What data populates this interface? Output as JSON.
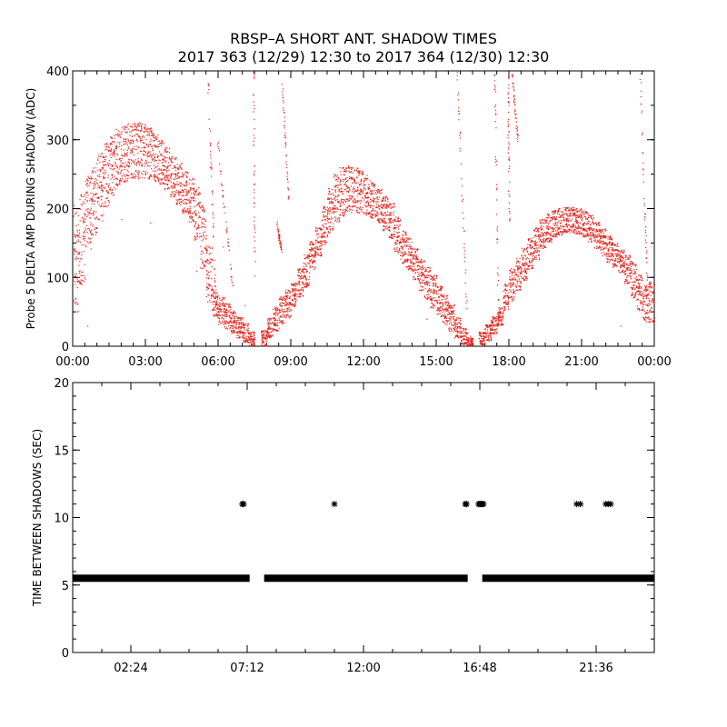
{
  "title": {
    "line1": "RBSP–A SHORT ANT. SHADOW TIMES",
    "line2": "2017 363 (12/29) 12:30 to 2017 364 (12/30) 12:30"
  },
  "colors": {
    "points_top": "#e8231c",
    "points_bottom": "#000000",
    "axes": "#000000"
  },
  "chart_data": [
    {
      "type": "scatter",
      "ylabel": "Probe 5 DELTA AMP DURING SHADOW (ADC)",
      "xlabel": "",
      "x_unit": "hours",
      "xlim": [
        0,
        24
      ],
      "ylim": [
        0,
        400
      ],
      "x_ticks": [
        {
          "v": 0,
          "label": "00:00"
        },
        {
          "v": 3,
          "label": "03:00"
        },
        {
          "v": 6,
          "label": "06:00"
        },
        {
          "v": 9,
          "label": "09:00"
        },
        {
          "v": 12,
          "label": "12:00"
        },
        {
          "v": 15,
          "label": "15:00"
        },
        {
          "v": 18,
          "label": "18:00"
        },
        {
          "v": 21,
          "label": "21:00"
        },
        {
          "v": 24,
          "label": "00:00"
        }
      ],
      "y_ticks": [
        {
          "v": 0,
          "label": "0"
        },
        {
          "v": 100,
          "label": "100"
        },
        {
          "v": 200,
          "label": "200"
        },
        {
          "v": 300,
          "label": "300"
        },
        {
          "v": 400,
          "label": "400"
        }
      ],
      "series": [
        {
          "marker": "dot",
          "band_hours": 0.25,
          "bands": [
            [
              0.0,
              60,
              200
            ],
            [
              0.25,
              100,
              215
            ],
            [
              0.5,
              150,
              240
            ],
            [
              0.75,
              170,
              260
            ],
            [
              1.0,
              190,
              275
            ],
            [
              1.25,
              210,
              290
            ],
            [
              1.5,
              225,
              300
            ],
            [
              1.75,
              240,
              310
            ],
            [
              2.0,
              245,
              315
            ],
            [
              2.25,
              250,
              318
            ],
            [
              2.5,
              250,
              320
            ],
            [
              2.75,
              250,
              318
            ],
            [
              3.0,
              248,
              312
            ],
            [
              3.25,
              245,
              305
            ],
            [
              3.5,
              240,
              295
            ],
            [
              3.75,
              232,
              285
            ],
            [
              4.0,
              222,
              272
            ],
            [
              4.25,
              210,
              262
            ],
            [
              4.5,
              198,
              250
            ],
            [
              4.75,
              185,
              240
            ],
            [
              5.0,
              160,
              225
            ],
            [
              5.25,
              120,
              200
            ],
            [
              5.5,
              70,
              140
            ],
            [
              5.75,
              45,
              80
            ],
            [
              6.0,
              35,
              70
            ],
            [
              6.25,
              28,
              60
            ],
            [
              6.5,
              22,
              50
            ],
            [
              6.75,
              15,
              40
            ],
            [
              7.0,
              8,
              32
            ],
            [
              7.25,
              3,
              20
            ],
            [
              7.75,
              2,
              22
            ],
            [
              8.0,
              15,
              40
            ],
            [
              8.25,
              25,
              55
            ],
            [
              8.5,
              35,
              70
            ],
            [
              8.75,
              45,
              80
            ],
            [
              9.0,
              60,
              90
            ],
            [
              9.25,
              75,
              110
            ],
            [
              9.5,
              90,
              130
            ],
            [
              9.75,
              115,
              150
            ],
            [
              10.0,
              135,
              170
            ],
            [
              10.25,
              150,
              200
            ],
            [
              10.5,
              170,
              225
            ],
            [
              10.75,
              185,
              245
            ],
            [
              11.0,
              195,
              255
            ],
            [
              11.25,
              200,
              258
            ],
            [
              11.5,
              200,
              256
            ],
            [
              11.75,
              198,
              252
            ],
            [
              12.0,
              195,
              245
            ],
            [
              12.25,
              190,
              235
            ],
            [
              12.5,
              182,
              225
            ],
            [
              12.75,
              172,
              215
            ],
            [
              13.0,
              160,
              205
            ],
            [
              13.25,
              140,
              185
            ],
            [
              13.5,
              125,
              165
            ],
            [
              13.75,
              115,
              155
            ],
            [
              14.0,
              100,
              140
            ],
            [
              14.25,
              85,
              125
            ],
            [
              14.5,
              72,
              112
            ],
            [
              14.75,
              60,
              100
            ],
            [
              15.0,
              45,
              85
            ],
            [
              15.25,
              35,
              72
            ],
            [
              15.5,
              25,
              58
            ],
            [
              15.75,
              15,
              40
            ],
            [
              16.0,
              5,
              25
            ],
            [
              16.25,
              2,
              12
            ],
            [
              16.75,
              4,
              20
            ],
            [
              17.0,
              10,
              30
            ],
            [
              17.25,
              20,
              42
            ],
            [
              17.5,
              32,
              55
            ],
            [
              17.75,
              55,
              90
            ],
            [
              18.0,
              70,
              110
            ],
            [
              18.25,
              85,
              125
            ],
            [
              18.5,
              100,
              140
            ],
            [
              18.75,
              115,
              155
            ],
            [
              19.0,
              130,
              170
            ],
            [
              19.25,
              145,
              182
            ],
            [
              19.5,
              155,
              190
            ],
            [
              19.75,
              162,
              195
            ],
            [
              20.0,
              165,
              198
            ],
            [
              20.25,
              168,
              200
            ],
            [
              20.5,
              168,
              200
            ],
            [
              20.75,
              166,
              198
            ],
            [
              21.0,
              162,
              195
            ],
            [
              21.25,
              155,
              188
            ],
            [
              21.5,
              145,
              178
            ],
            [
              21.75,
              135,
              168
            ],
            [
              22.0,
              125,
              158
            ],
            [
              22.25,
              118,
              148
            ],
            [
              22.5,
              110,
              138
            ],
            [
              22.75,
              95,
              130
            ],
            [
              23.0,
              75,
              120
            ],
            [
              23.25,
              55,
              100
            ],
            [
              23.5,
              40,
              85
            ],
            [
              23.75,
              40,
              90
            ]
          ],
          "spikes": [
            [
              5.55,
              5.9,
              400,
              55
            ],
            [
              5.95,
              6.6,
              300,
              80
            ],
            [
              7.45,
              7.5,
              400,
              100
            ],
            [
              8.4,
              8.6,
              180,
              140
            ],
            [
              8.6,
              8.9,
              400,
              210
            ],
            [
              15.85,
              16.3,
              400,
              8
            ],
            [
              17.4,
              17.55,
              400,
              30
            ],
            [
              17.95,
              18.0,
              400,
              170
            ],
            [
              18.1,
              18.35,
              400,
              300
            ],
            [
              23.4,
              23.7,
              400,
              80
            ]
          ]
        }
      ]
    },
    {
      "type": "scatter",
      "ylabel": "TIME BETWEEN SHADOWS (SEC)",
      "xlabel": "",
      "x_unit": "hours",
      "xlim": [
        0,
        24
      ],
      "ylim": [
        0,
        20
      ],
      "x_ticks": [
        {
          "v": 2.4,
          "label": "02:24"
        },
        {
          "v": 7.2,
          "label": "07:12"
        },
        {
          "v": 12.0,
          "label": "12:00"
        },
        {
          "v": 16.8,
          "label": "16:48"
        },
        {
          "v": 21.6,
          "label": "21:36"
        }
      ],
      "y_ticks": [
        {
          "v": 0,
          "label": "0"
        },
        {
          "v": 5,
          "label": "5"
        },
        {
          "v": 10,
          "label": "10"
        },
        {
          "v": 15,
          "label": "15"
        },
        {
          "v": 20,
          "label": "20"
        }
      ],
      "series": [
        {
          "marker": "asterisk",
          "baseline": 5.5,
          "baseline_x_ranges": [
            [
              0.0,
              7.3
            ],
            [
              7.9,
              16.3
            ],
            [
              16.9,
              24.0
            ]
          ],
          "points": [
            [
              7.0,
              11.0
            ],
            [
              7.05,
              11.0
            ],
            [
              10.8,
              11.0
            ],
            [
              16.2,
              11.0
            ],
            [
              16.25,
              11.0
            ],
            [
              16.75,
              11.0
            ],
            [
              16.8,
              11.0
            ],
            [
              16.85,
              11.0
            ],
            [
              16.9,
              11.0
            ],
            [
              16.95,
              11.0
            ],
            [
              20.8,
              11.0
            ],
            [
              20.95,
              11.0
            ],
            [
              22.0,
              11.0
            ],
            [
              22.1,
              11.0
            ],
            [
              22.2,
              11.0
            ]
          ]
        }
      ]
    }
  ]
}
